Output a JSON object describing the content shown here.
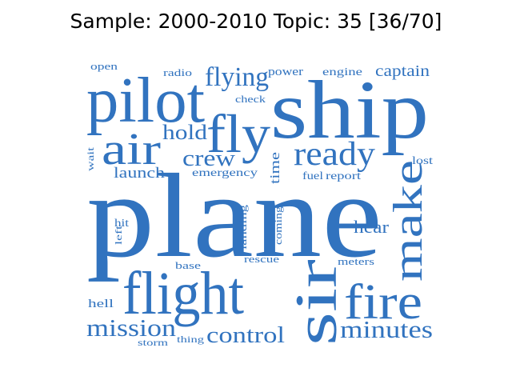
{
  "title": "Sample: 2000-2010 Topic: 35 [36/70]",
  "color": "#3173bf",
  "words": [
    "plane",
    "ship",
    "pilot",
    "flight",
    "sir",
    "fly",
    "fire",
    "air",
    "make",
    "ready",
    "flying",
    "mission",
    "minutes",
    "control",
    "crew",
    "hold",
    "captain",
    "hear",
    "launch",
    "time",
    "engine",
    "power",
    "emergency",
    "fuel",
    "report",
    "check",
    "radio",
    "open",
    "wait",
    "lost",
    "hit",
    "left",
    "landing",
    "coming",
    "rescue",
    "meters",
    "base",
    "hell",
    "thing",
    "storm"
  ]
}
